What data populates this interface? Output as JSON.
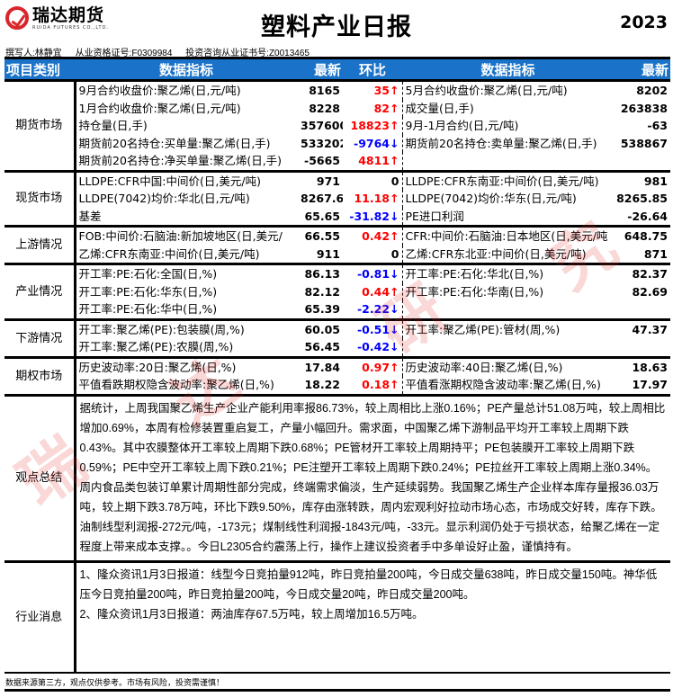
{
  "header": {
    "logo_cn": "瑞达期货",
    "logo_en": "RUIDA FUTURES CO.,LTD.",
    "title": "塑料产业日报",
    "year": "2023",
    "author": "撰写人:林静宜",
    "license": "从业资格证号:F0309984",
    "advisory": "投资咨询从业证书号:Z0013465"
  },
  "columns": [
    "项目类别",
    "数据指标",
    "最新",
    "环比",
    "数据指标",
    "最新"
  ],
  "colors": {
    "header_bg": "#1a73c8",
    "up": "#ff0000",
    "down": "#0000ff"
  },
  "sections": [
    {
      "category": "期货市场",
      "rows": [
        {
          "l": "9月合约收盘价:聚乙烯(日,元/吨)",
          "v": "8165",
          "c": "35",
          "d": "up",
          "r": "5月合约收盘价:聚乙烯(日,元/吨)",
          "rv": "8202"
        },
        {
          "l": "1月合约收盘价:聚乙烯(日,元/吨)",
          "v": "8228",
          "c": "82",
          "d": "up",
          "r": "成交量(日,手)",
          "rv": "263838"
        },
        {
          "l": "持仓量(日,手)",
          "v": "357600",
          "c": "18823",
          "d": "up",
          "r": "9月-1月合约(日,元/吨)",
          "rv": "-63"
        },
        {
          "l": "期货前20名持仓:买单量:聚乙烯(日,手)",
          "v": "533202",
          "c": "-9764",
          "d": "down",
          "r": "期货前20名持仓:卖单量:聚乙烯(日,手)",
          "rv": "538867"
        },
        {
          "l": "期货前20名持仓:净买单量:聚乙烯(日,手)",
          "v": "-5665",
          "c": "4811",
          "d": "up",
          "r": "",
          "rv": ""
        }
      ]
    },
    {
      "category": "现货市场",
      "rows": [
        {
          "l": "LLDPE:CFR中国:中间价(日,美元/吨)",
          "v": "971",
          "c": "0",
          "d": "flat",
          "r": "LLDPE:CFR东南亚:中间价(日,美元/吨)",
          "rv": "981"
        },
        {
          "l": "LLDPE(7042)均价:华北(日,元/吨)",
          "v": "8267.65",
          "c": "11.18",
          "d": "up",
          "r": "LLDPE(7042)均价:华东(日,元/吨)",
          "rv": "8265.85"
        },
        {
          "l": "基差",
          "v": "65.65",
          "c": "-31.82",
          "d": "down",
          "r": "PE进口利润",
          "rv": "-26.64"
        }
      ]
    },
    {
      "category": "上游情况",
      "rows": [
        {
          "l": "FOB:中间价:石脑油:新加坡地区(日,美元/",
          "v": "66.55",
          "c": "0.42",
          "d": "up",
          "r": "CFR:中间价:石脑油:日本地区(日,美元/吨",
          "rv": "648.75"
        },
        {
          "l": "乙烯:CFR东南亚:中间价(日,美元/吨)",
          "v": "911",
          "c": "0",
          "d": "flat",
          "r": "乙烯:CFR东北亚:中间价(日,美元/吨)",
          "rv": "871"
        }
      ]
    },
    {
      "category": "产业情况",
      "rows": [
        {
          "l": "开工率:PE:石化:全国(日,%)",
          "v": "86.13",
          "c": "-0.81",
          "d": "down",
          "r": "开工率:PE:石化:华北(日,%)",
          "rv": "82.37"
        },
        {
          "l": "开工率:PE:石化:华东(日,%)",
          "v": "82.12",
          "c": "0.44",
          "d": "up",
          "r": "开工率:PE:石化:华南(日,%)",
          "rv": "82.69"
        },
        {
          "l": "开工率:PE:石化:华中(日,%)",
          "v": "65.39",
          "c": "-2.22",
          "d": "down",
          "r": "",
          "rv": ""
        }
      ]
    },
    {
      "category": "下游情况",
      "rows": [
        {
          "l": "开工率:聚乙烯(PE):包装膜(周,%)",
          "v": "60.05",
          "c": "-0.51",
          "d": "down",
          "r": "开工率:聚乙烯(PE):管材(周,%)",
          "rv": "47.37"
        },
        {
          "l": "开工率:聚乙烯(PE):农膜(周,%)",
          "v": "56.45",
          "c": "-0.42",
          "d": "down",
          "r": "",
          "rv": ""
        }
      ]
    },
    {
      "category": "期权市场",
      "rows": [
        {
          "l": "历史波动率:20日:聚乙烯(日,%)",
          "v": "17.84",
          "c": "0.97",
          "d": "up",
          "r": "历史波动率:40日:聚乙烯(日,%)",
          "rv": "18.63"
        },
        {
          "l": "平值看跌期权隐含波动率:聚乙烯(日,%)",
          "v": "18.22",
          "c": "0.18",
          "d": "up",
          "r": "平值看涨期权隐含波动率:聚乙烯(日,%)",
          "rv": "17.97"
        }
      ]
    }
  ],
  "opinion": {
    "category": "观点总结",
    "text": "据统计，上周我国聚乙烯生产企业产能利用率报86.73%，较上周相比上涨0.16%；PE产量总计51.08万吨，较上周相比增加0.69%，本周有检修装置重启复工，产量小幅回升。需求面，中国聚乙烯下游制品平均开工率较上周期下跌0.43%。其中农膜整体开工率较上周期下跌0.68%；PE管材开工率较上周期持平；PE包装膜开工率较上周期下跌0.59%；PE中空开工率较上周下跌0.21%；PE注塑开工率较上周期下跌0.24%；PE拉丝开工率较上周期上涨0.34%。周内食品类包装订单累计周期性部分完成，终端需求偏淡，生产延续弱势。我国聚乙烯生产企业样本库存量报36.03万吨，较上期下跌3.78万吨，环比下跌9.50%，库存由涨转跌，周内宏观利好拉动市场心态，市场成交好转，库存下跌。油制线型利润报-272元/吨，-173元；煤制线性利润报-1843元/吨，-33元。显示利润仍处于亏损状态，给聚乙烯在一定程度上带来成本支撑。。今日L2305合约震荡上行，操作上建议投资者手中多单设好止盈，谨慎持有。"
  },
  "news": {
    "category": "行业消息",
    "items": [
      "1、隆众资讯1月3日报道：线型今日竞拍量912吨，昨日竞拍量200吨，今日成交量638吨，昨日成交量150吨。神华低压今日竞拍量200吨，昨日竞拍量200吨，今日成交量20吨，昨日成交量200吨。",
      "2、隆众资讯1月3日报道：两油库存67.5万吨，较上周增加16.5万吨。"
    ]
  },
  "footer": "数据来源第三方，观点仅供参考。市场有风险，投资需谨慎！",
  "watermark": [
    "瑞",
    "达",
    "研",
    "究"
  ]
}
